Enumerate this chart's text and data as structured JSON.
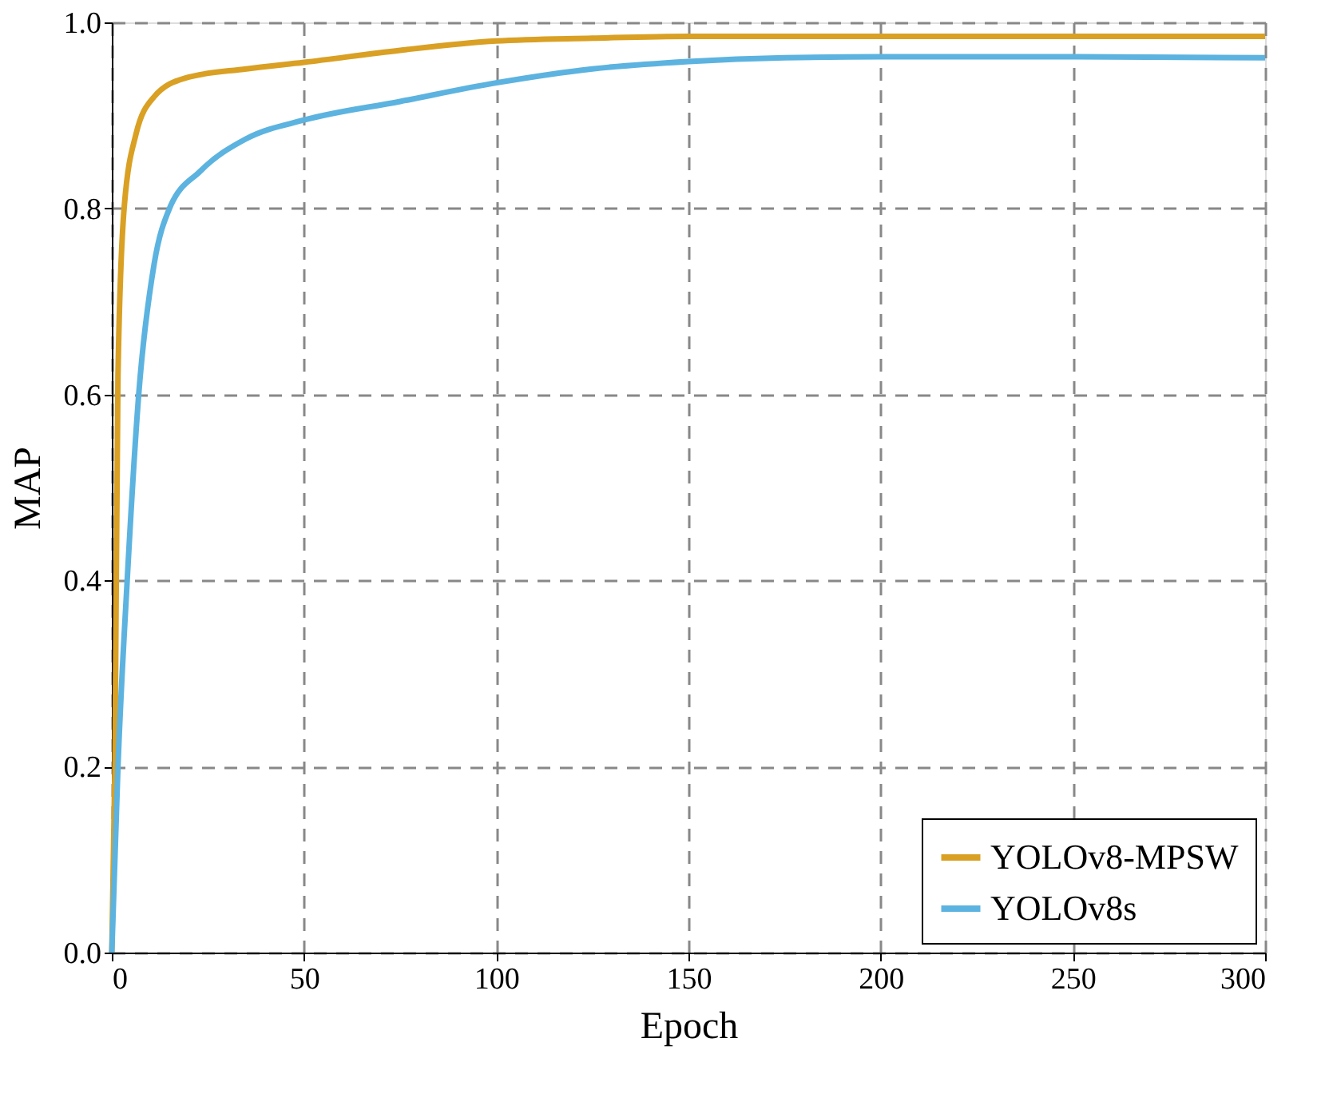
{
  "chart_data": {
    "type": "line",
    "xlabel": "Epoch",
    "ylabel": "MAP",
    "xlim": [
      0,
      300
    ],
    "xticks": [
      0,
      50,
      100,
      150,
      200,
      250,
      300
    ],
    "ylim": [
      0.0,
      1.0
    ],
    "yticks": [
      {
        "value": 0,
        "label": "0.0"
      },
      0.2,
      0.4,
      0.6,
      0.8,
      {
        "value": 1,
        "label": "1.0"
      }
    ],
    "grid": true,
    "legend": "bottom right",
    "line_style": "solid",
    "marker": "none",
    "series": [
      {
        "name": "YOLOv8-MPSW",
        "color": "#d9a024",
        "x": [
          0,
          0.8,
          1.6,
          3.2,
          6.3,
          11,
          19,
          35,
          50,
          75,
          100,
          125,
          150,
          200,
          250,
          300
        ],
        "values": [
          0,
          0.2,
          0.62,
          0.8,
          0.88,
          0.92,
          0.94,
          0.95,
          0.957,
          0.97,
          0.98,
          0.983,
          0.985,
          0.985,
          0.985,
          0.985
        ]
      },
      {
        "name": "YOLOv8s",
        "color": "#5cb3e0",
        "x": [
          0,
          1.6,
          4,
          7,
          11,
          15,
          23,
          35,
          50,
          75,
          100,
          125,
          150,
          175,
          200,
          250,
          300
        ],
        "values": [
          0,
          0.2,
          0.4,
          0.6,
          0.74,
          0.8,
          0.84,
          0.875,
          0.895,
          0.915,
          0.935,
          0.95,
          0.958,
          0.962,
          0.963,
          0.963,
          0.962
        ]
      }
    ]
  }
}
